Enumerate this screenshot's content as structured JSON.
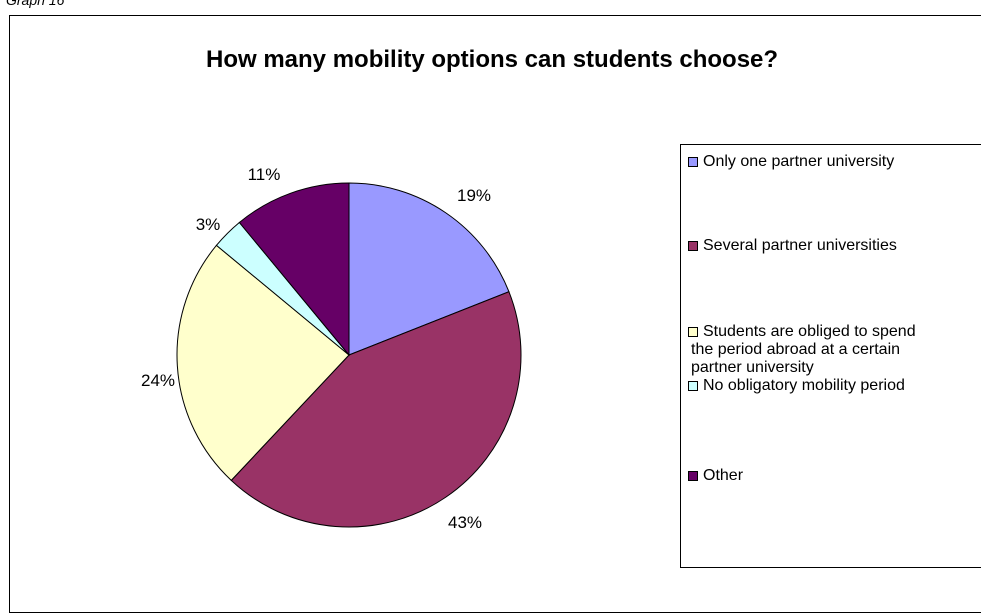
{
  "caption": "Graph 16",
  "chart_data": {
    "type": "pie",
    "title": "How many mobility options can students choose?",
    "categories": [
      "Only one partner university",
      "Several partner universities",
      "Students are obliged to spend the period abroad at a certain partner university",
      "No obligatory mobility period",
      "Other"
    ],
    "values": [
      19,
      43,
      24,
      3,
      11
    ],
    "labels": [
      "19%",
      "43%",
      "24%",
      "3%",
      "11%"
    ],
    "colors": [
      "#9999FF",
      "#993366",
      "#FFFFCC",
      "#CCFFFF",
      "#660066"
    ],
    "legend_position": "right"
  },
  "legend": {
    "items": [
      {
        "lines": [
          "Only one partner university"
        ]
      },
      {
        "lines": [
          "Several partner universities"
        ]
      },
      {
        "lines": [
          "Students are obliged to spend",
          "the period abroad at a certain",
          "partner university"
        ]
      },
      {
        "lines": [
          "No obligatory mobility period"
        ]
      },
      {
        "lines": [
          "Other"
        ]
      }
    ]
  }
}
